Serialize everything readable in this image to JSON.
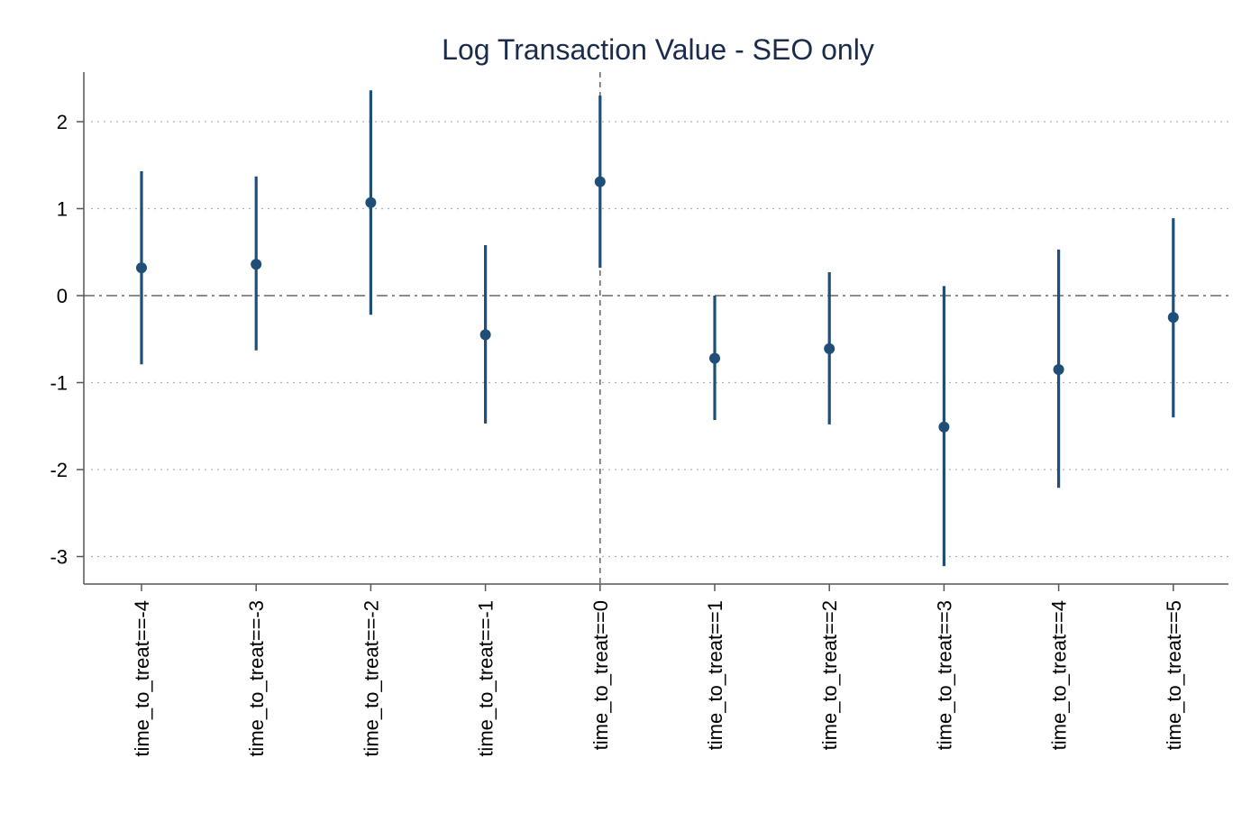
{
  "chart_data": {
    "type": "scatter",
    "title": "Log Transaction Value - SEO only",
    "xlabel": "",
    "ylabel": "",
    "categories": [
      "time_to_treat==-4",
      "time_to_treat==-3",
      "time_to_treat==-2",
      "time_to_treat==-1",
      "time_to_treat==0",
      "time_to_treat==1",
      "time_to_treat==2",
      "time_to_treat==3",
      "time_to_treat==4",
      "time_to_treat==5"
    ],
    "series": [
      {
        "estimates": [
          0.32,
          0.36,
          1.07,
          -0.45,
          1.31,
          -0.72,
          -0.61,
          -1.51,
          -0.85,
          -0.25
        ],
        "ci_lower": [
          -0.79,
          -0.63,
          -0.22,
          -1.47,
          0.32,
          -1.43,
          -1.48,
          -3.11,
          -2.21,
          -1.4
        ],
        "ci_upper": [
          1.43,
          1.37,
          2.36,
          0.58,
          2.3,
          0.0,
          0.27,
          0.11,
          0.53,
          0.89
        ]
      }
    ],
    "yticks": [
      -3,
      -2,
      -1,
      0,
      1,
      2
    ],
    "ylim": [
      -3.33,
      2.57
    ],
    "reference_lines": {
      "horizontal": 0,
      "vertical_category": "time_to_treat==0"
    },
    "grid": "horizontal dotted",
    "color": "#1f4e79"
  }
}
